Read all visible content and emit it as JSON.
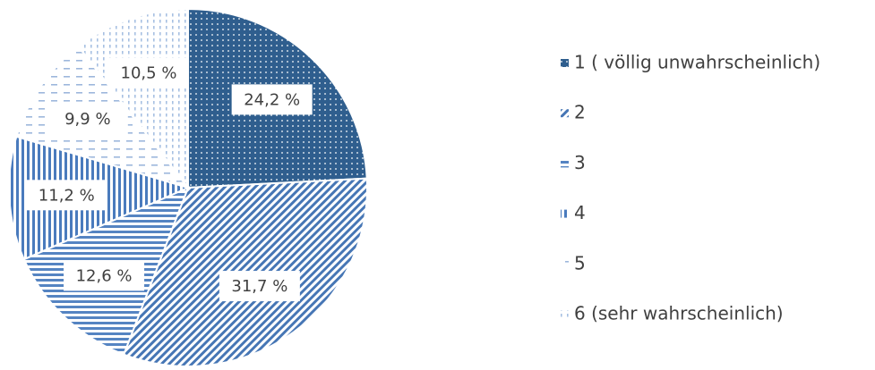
{
  "chart_data": {
    "type": "pie",
    "categories": [
      "1 ( völlig unwahrscheinlich)",
      "2",
      "3",
      "4",
      "5",
      "6 (sehr wahrscheinlich)"
    ],
    "values": [
      24.2,
      31.7,
      12.6,
      11.2,
      9.9,
      10.5
    ],
    "value_labels": [
      "24,2 %",
      "31,7 %",
      "12,6 %",
      "11,2 %",
      "9,9 %",
      "10,5 %"
    ],
    "colors": [
      "#2f5e8e",
      "#4676b5",
      "#5584c2",
      "#4a7bbd",
      "#9db7dc",
      "#a7c0e2"
    ],
    "patterns": [
      "dots",
      "diagonal",
      "horizontal",
      "vertical",
      "dashes",
      "dotted-vertical"
    ],
    "legend": "right"
  }
}
